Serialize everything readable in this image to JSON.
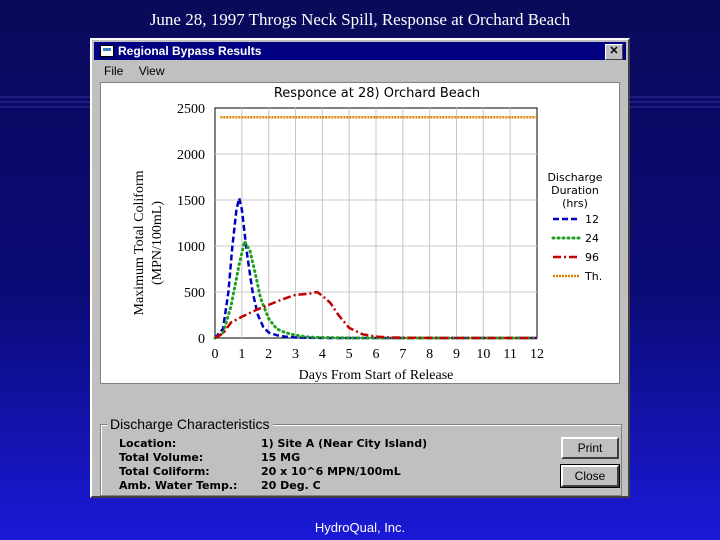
{
  "slide": {
    "title": "June 28, 1997 Throgs Neck Spill, Response at Orchard Beach",
    "footer": "HydroQual, Inc."
  },
  "window": {
    "title": "Regional Bypass Results",
    "close_glyph": "✕"
  },
  "menu": {
    "file": "File",
    "view": "View"
  },
  "chart_data": {
    "type": "line",
    "title": "Responce at 28) Orchard Beach",
    "xlabel": "Days From Start of Release",
    "ylabel_line1": "Maximum Total Coliform",
    "ylabel_line2": "(MPN/100mL)",
    "xlim": [
      0,
      12
    ],
    "ylim": [
      0,
      2500
    ],
    "xticks": [
      "0",
      "1",
      "2",
      "3",
      "4",
      "5",
      "6",
      "7",
      "8",
      "9",
      "10",
      "11",
      "12"
    ],
    "yticks": [
      "0",
      "500",
      "1000",
      "1500",
      "2000",
      "2500"
    ],
    "legend_title": [
      "Discharge",
      "Duration",
      "(hrs)"
    ],
    "series": [
      {
        "name": "12",
        "color": "#0000c0",
        "style": "dash",
        "x": [
          0,
          0.3,
          0.5,
          0.65,
          0.8,
          0.9,
          1.0,
          1.2,
          1.4,
          1.6,
          1.8,
          2.0,
          2.3,
          2.6,
          3.0,
          3.5,
          4.0,
          5.0,
          6.0,
          8.0,
          12.0
        ],
        "y": [
          0,
          100,
          500,
          1000,
          1400,
          1520,
          1400,
          900,
          500,
          250,
          120,
          60,
          30,
          15,
          5,
          2,
          0,
          0,
          0,
          0,
          0
        ]
      },
      {
        "name": "24",
        "color": "#20a020",
        "style": "tri",
        "x": [
          0,
          0.3,
          0.6,
          0.9,
          1.1,
          1.3,
          1.5,
          1.7,
          2.0,
          2.3,
          2.6,
          3.0,
          3.5,
          4.0,
          5.0,
          6.0,
          8.0,
          12.0
        ],
        "y": [
          0,
          50,
          350,
          800,
          1050,
          950,
          700,
          430,
          210,
          100,
          60,
          30,
          10,
          5,
          0,
          0,
          0,
          0
        ]
      },
      {
        "name": "96",
        "color": "#c00000",
        "style": "dashdot",
        "x": [
          0,
          0.3,
          0.6,
          1.0,
          1.5,
          2.0,
          2.5,
          3.0,
          3.5,
          3.8,
          4.0,
          4.3,
          4.6,
          5.0,
          5.5,
          6.0,
          6.5,
          7.0,
          7.5,
          8.0,
          9.0,
          10.0,
          12.0
        ],
        "y": [
          0,
          50,
          170,
          230,
          300,
          360,
          420,
          470,
          480,
          500,
          460,
          380,
          250,
          110,
          40,
          15,
          5,
          3,
          2,
          1,
          0,
          0,
          0
        ]
      },
      {
        "name": "Th.",
        "color": "#e08000",
        "style": "cross",
        "x": [
          0.2,
          12
        ],
        "y": [
          2400,
          2400
        ]
      }
    ]
  },
  "discharge": {
    "title": "Discharge Characteristics",
    "rows": [
      {
        "label": "Location:",
        "value": "1) Site A (Near City Island)"
      },
      {
        "label": "Total Volume:",
        "value": "15 MG"
      },
      {
        "label": "Total Coliform:",
        "value": "20 x 10^6 MPN/100mL"
      },
      {
        "label": "Amb. Water Temp.:",
        "value": "20 Deg. C"
      }
    ]
  },
  "buttons": {
    "print": "Print",
    "close": "Close"
  }
}
